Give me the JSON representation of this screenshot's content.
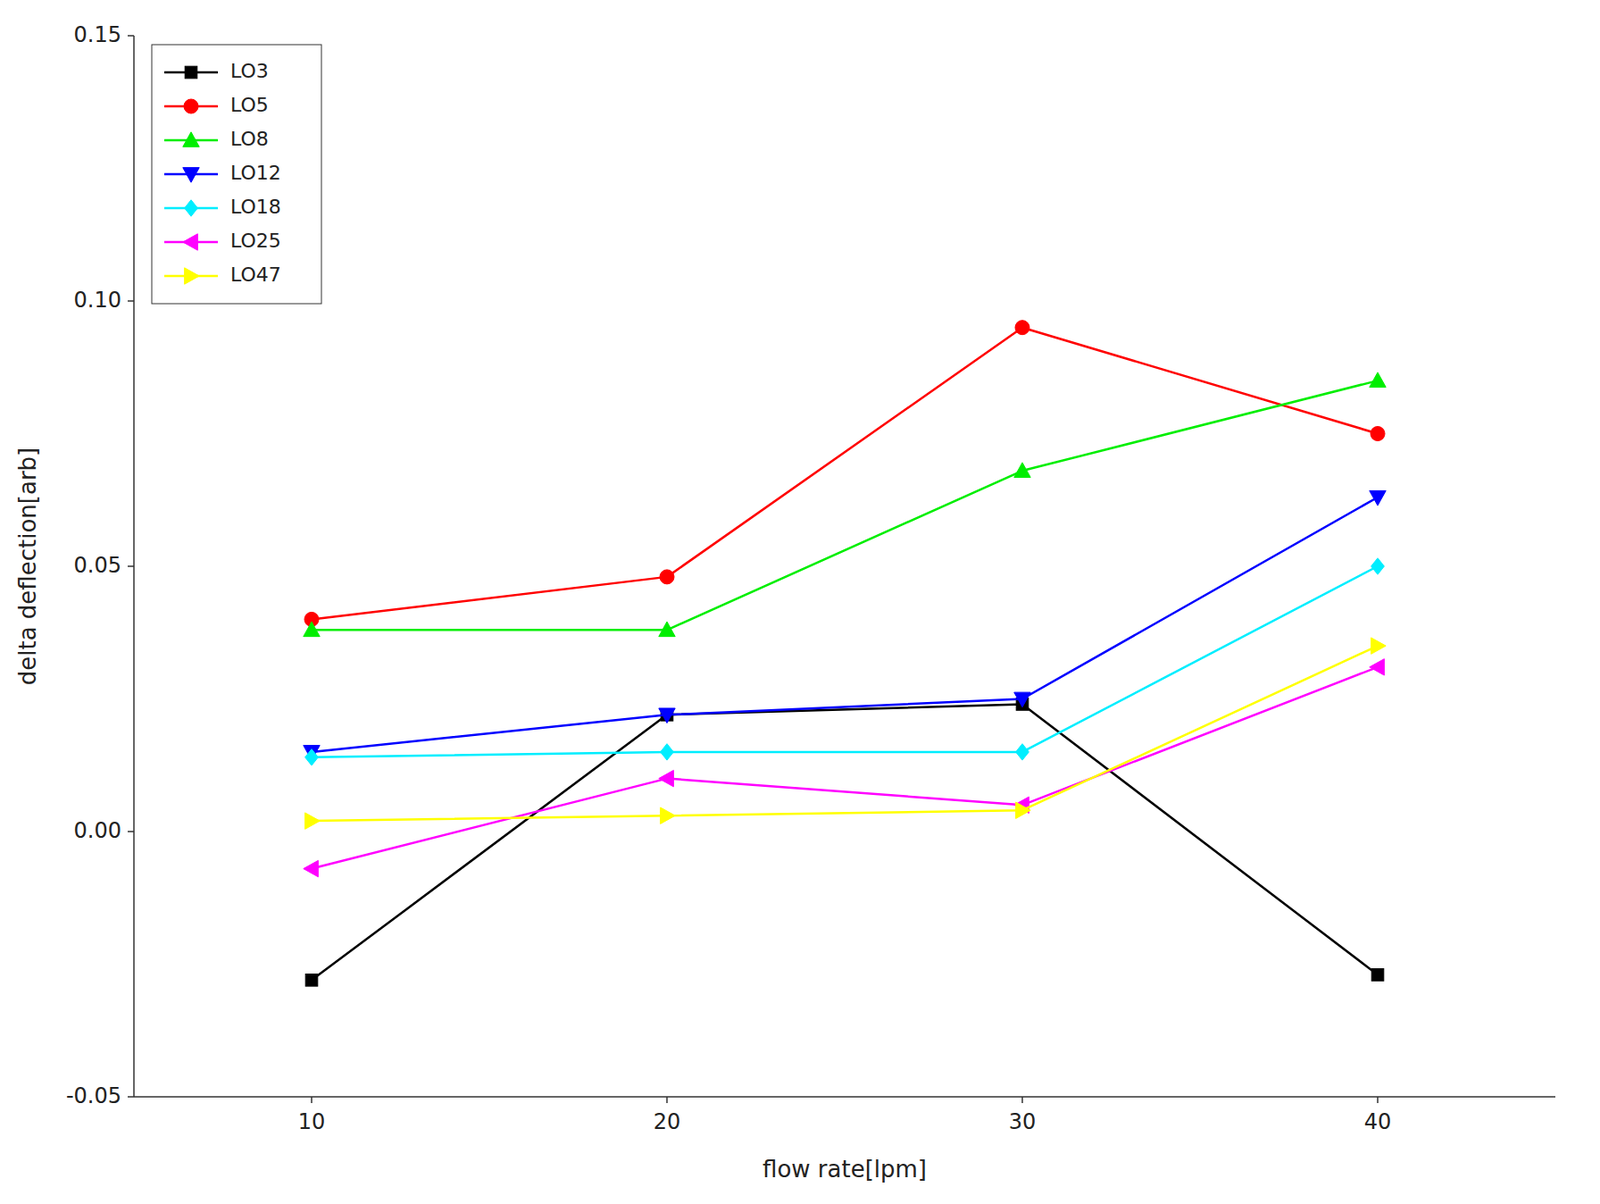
{
  "chart_data": {
    "type": "line",
    "xlabel": "flow rate[lpm]",
    "ylabel": "delta deflection[arb]",
    "x": [
      10,
      20,
      30,
      40
    ],
    "series": [
      {
        "name": "LO3",
        "color": "#000000",
        "marker": "square",
        "values": [
          -0.028,
          0.022,
          0.024,
          -0.027
        ]
      },
      {
        "name": "LO5",
        "color": "#ff0000",
        "marker": "circle",
        "values": [
          0.04,
          0.048,
          0.095,
          0.075
        ]
      },
      {
        "name": "LO8",
        "color": "#00ee00",
        "marker": "triangle-up",
        "values": [
          0.038,
          0.038,
          0.068,
          0.085
        ]
      },
      {
        "name": "LO12",
        "color": "#0000ff",
        "marker": "triangle-down",
        "values": [
          0.015,
          0.022,
          0.025,
          0.063
        ]
      },
      {
        "name": "LO18",
        "color": "#00eeff",
        "marker": "diamond",
        "values": [
          0.014,
          0.015,
          0.015,
          0.05
        ]
      },
      {
        "name": "LO25",
        "color": "#ff00ff",
        "marker": "triangle-left",
        "values": [
          -0.007,
          0.01,
          0.005,
          0.031
        ]
      },
      {
        "name": "LO47",
        "color": "#ffff00",
        "marker": "triangle-right",
        "values": [
          0.002,
          0.003,
          0.004,
          0.035
        ]
      }
    ],
    "xlim": [
      5,
      45
    ],
    "ylim": [
      -0.05,
      0.15
    ],
    "xticks": [
      10,
      20,
      30,
      40
    ],
    "yticks": [
      -0.05,
      {
        "value": 0,
        "label": "0.00"
      },
      0.05,
      {
        "value": 0.1,
        "label": "0.10"
      },
      0.15
    ],
    "legend": "upper left",
    "grid": false,
    "background_color": "#ffffff"
  }
}
